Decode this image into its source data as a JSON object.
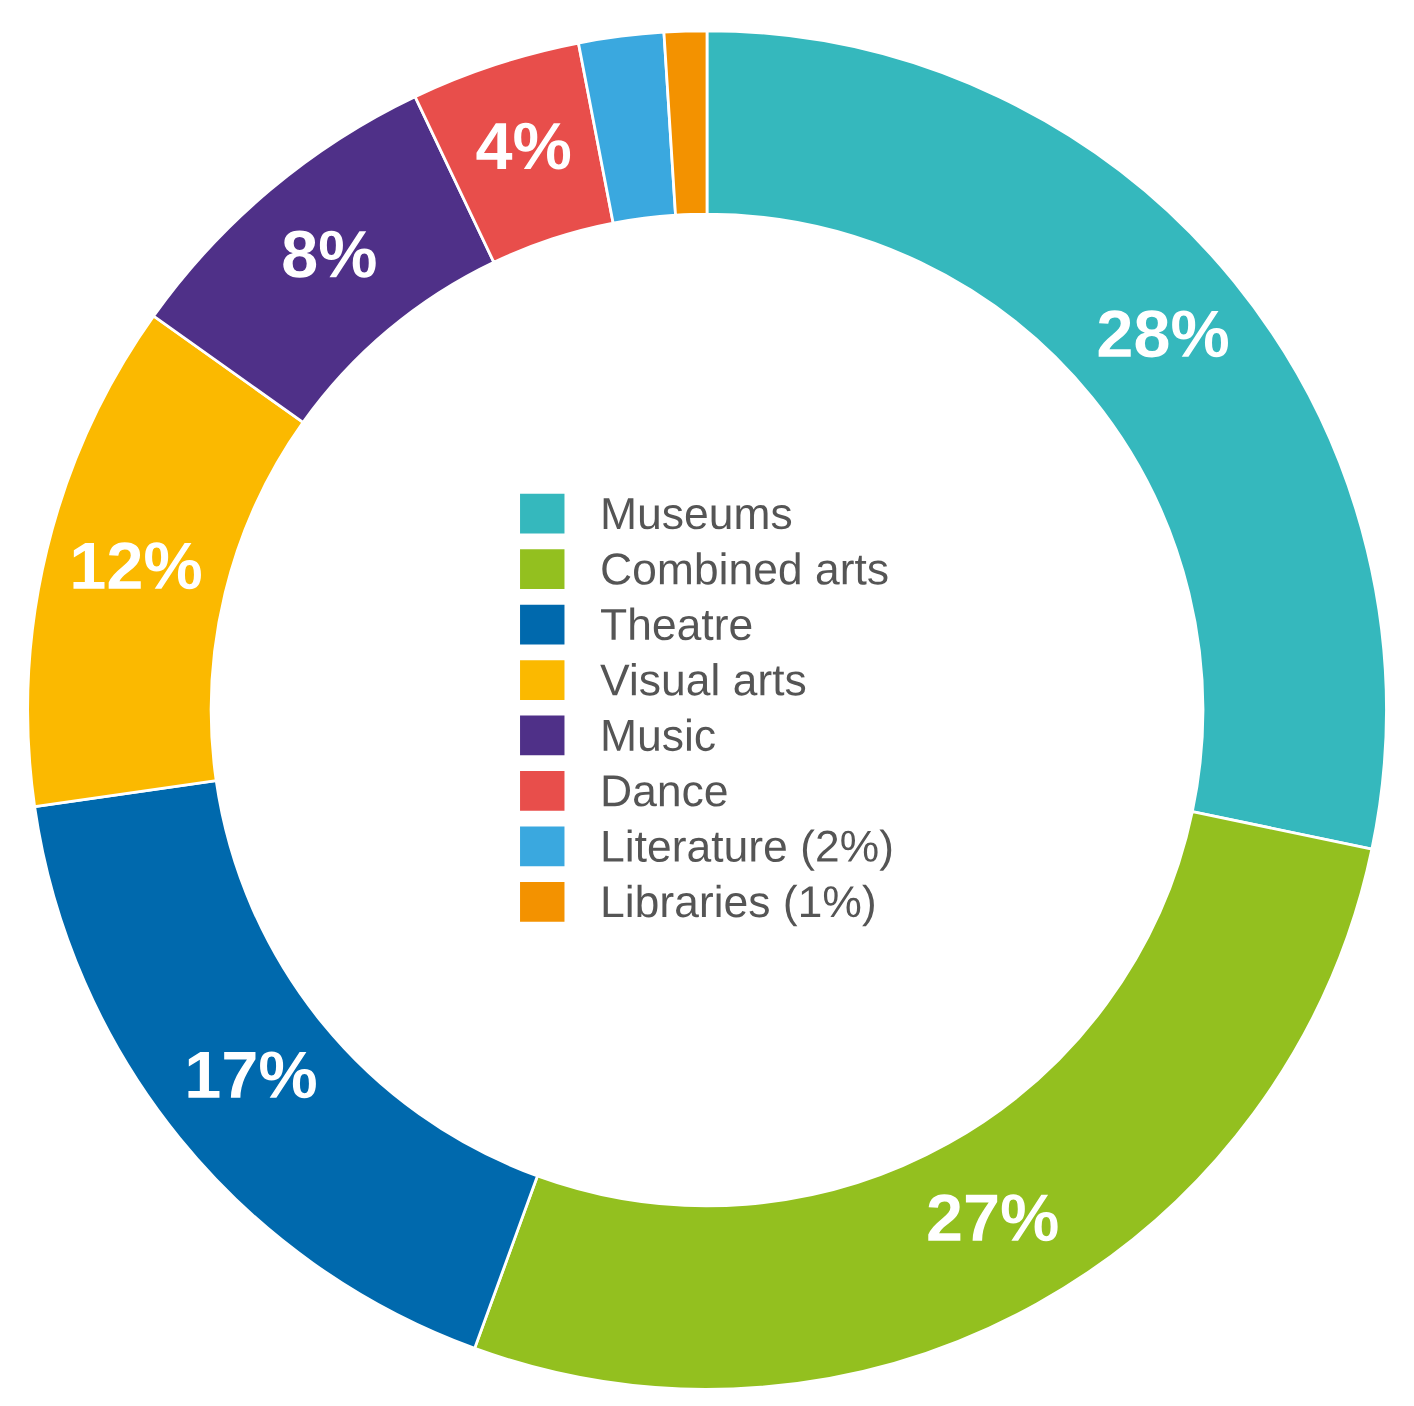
{
  "chart_data": {
    "type": "donut",
    "categories": [
      "Museums",
      "Combined arts",
      "Theatre",
      "Visual arts",
      "Music",
      "Dance",
      "Literature (2%)",
      "Libraries (1%)"
    ],
    "values": [
      28,
      27,
      17,
      12,
      8,
      4,
      2,
      1
    ],
    "colors": [
      "#35b8bd",
      "#93c01f",
      "#0069ad",
      "#fbb900",
      "#4f3088",
      "#e84e4b",
      "#3aa8df",
      "#f39200"
    ],
    "value_labels": [
      "28%",
      "27%",
      "17%",
      "12%",
      "8%",
      "4%",
      null,
      null
    ],
    "legend": "center"
  }
}
